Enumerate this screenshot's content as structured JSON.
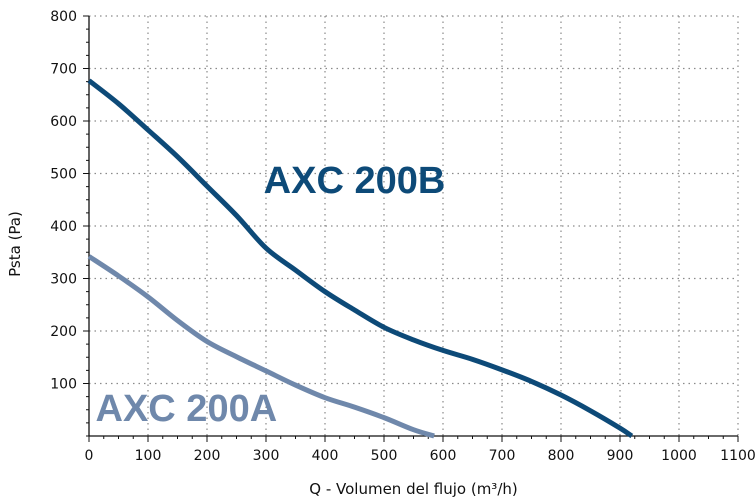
{
  "chart_data": {
    "type": "line",
    "title": "",
    "xlabel": "Q - Volumen del flujo (m³/h)",
    "ylabel": "Psta (Pa)",
    "xlim": [
      0,
      1100
    ],
    "ylim": [
      0,
      800
    ],
    "x_ticks": [
      0,
      100,
      200,
      300,
      400,
      500,
      600,
      700,
      800,
      900,
      1000,
      1100
    ],
    "y_ticks": [
      100,
      200,
      300,
      400,
      500,
      600,
      700,
      800
    ],
    "x_minor_step": 25,
    "y_minor_step": 25,
    "grid": true,
    "grid_style": "dotted",
    "legend": "none",
    "series": [
      {
        "name": "AXC 200B",
        "color": "#0d4a78",
        "points": [
          [
            0,
            677
          ],
          [
            50,
            633
          ],
          [
            100,
            583
          ],
          [
            150,
            532
          ],
          [
            200,
            476
          ],
          [
            250,
            420
          ],
          [
            300,
            358
          ],
          [
            350,
            316
          ],
          [
            400,
            275
          ],
          [
            450,
            240
          ],
          [
            500,
            207
          ],
          [
            550,
            183
          ],
          [
            600,
            163
          ],
          [
            650,
            146
          ],
          [
            700,
            126
          ],
          [
            750,
            104
          ],
          [
            800,
            78
          ],
          [
            850,
            48
          ],
          [
            900,
            15
          ],
          [
            920,
            0
          ]
        ]
      },
      {
        "name": "AXC 200A",
        "color": "#6f88ab",
        "points": [
          [
            0,
            342
          ],
          [
            50,
            305
          ],
          [
            100,
            265
          ],
          [
            150,
            220
          ],
          [
            200,
            180
          ],
          [
            250,
            151
          ],
          [
            300,
            124
          ],
          [
            350,
            97
          ],
          [
            400,
            73
          ],
          [
            450,
            55
          ],
          [
            500,
            35
          ],
          [
            550,
            12
          ],
          [
            585,
            0
          ]
        ]
      }
    ],
    "annotations": [
      {
        "text": "AXC 200B",
        "series": 0,
        "x": 450,
        "y": 490
      },
      {
        "text": "AXC 200A",
        "series": 1,
        "x": 165,
        "y": 55
      }
    ]
  }
}
